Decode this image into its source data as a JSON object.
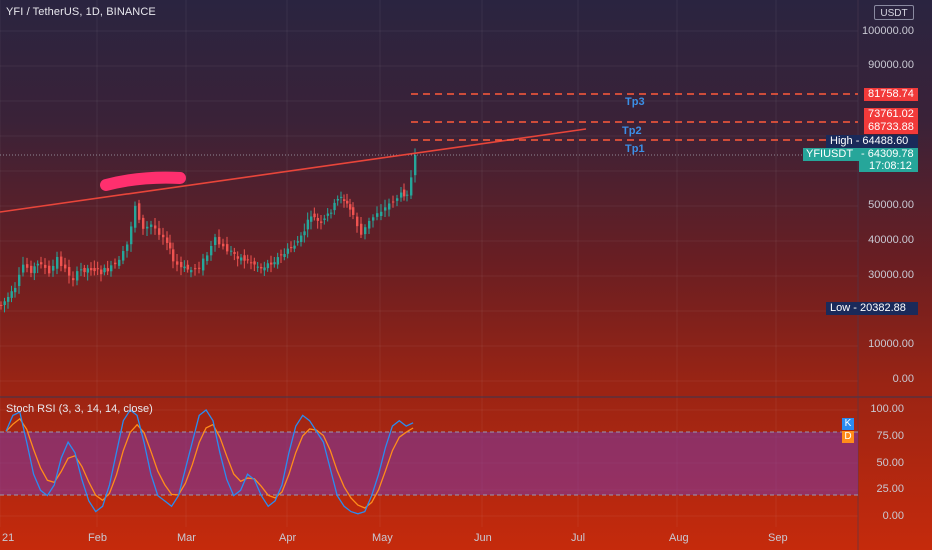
{
  "header": {
    "symbol_title": "YFI / TetherUS, 1D, BINANCE",
    "currency": "USDT"
  },
  "price_axis": {
    "labels": [
      "100000.00",
      "90000.00",
      "50000.00",
      "40000.00",
      "30000.00",
      "10000.00",
      "0.00"
    ]
  },
  "price_tags": {
    "tp3_price": "81758.74",
    "tp2_price": "73761.02",
    "tp1_price": "68733.88",
    "high_label": "High",
    "high_value": "64488.60",
    "ticker": "YFIUSDT",
    "last_price": "64309.78",
    "countdown": "17:08:12",
    "low_label": "Low",
    "low_value": "20382.88"
  },
  "targets": {
    "tp1": "Tp1",
    "tp2": "Tp2",
    "tp3": "Tp3"
  },
  "indicator": {
    "title": "Stoch RSI (3, 3, 14, 14, close)",
    "axis_labels": [
      "100.00",
      "75.00",
      "50.00",
      "25.00",
      "0.00"
    ],
    "k_label": "K",
    "d_label": "D"
  },
  "time_axis": {
    "labels": [
      "21",
      "Feb",
      "Mar",
      "Apr",
      "May",
      "Jun",
      "Jul",
      "Aug",
      "Sep"
    ]
  },
  "colors": {
    "resistance_line": "#e8453a",
    "target_line": "#ff5a3a",
    "tag_red": "#f23a3a",
    "tag_green": "#26a69a",
    "tag_navy": "#1a2a5a",
    "candle_up": "#26a69a",
    "candle_down": "#ef5350",
    "k_line": "#2a8cf0",
    "d_line": "#ff8c1a",
    "highlight": "#ff2f6e"
  }
}
